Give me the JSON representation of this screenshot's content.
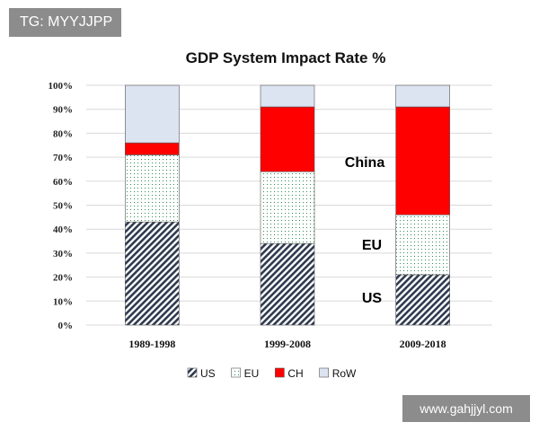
{
  "watermarks": {
    "top_left": "TG: MYYJJPP",
    "bottom_right": "www.gahjjyl.com"
  },
  "chart_data": {
    "type": "bar",
    "stacked": true,
    "title": "GDP System Impact Rate %",
    "categories": [
      "1989-1998",
      "1999-2008",
      "2009-2018"
    ],
    "series": [
      {
        "name": "US",
        "values": [
          43,
          34,
          21
        ],
        "fill": "hatch",
        "color": "#2f3a4f"
      },
      {
        "name": "EU",
        "values": [
          28,
          30,
          25
        ],
        "fill": "dots",
        "color": "#2e8b57"
      },
      {
        "name": "CH",
        "values": [
          5,
          27,
          45
        ],
        "fill": "solid",
        "color": "#ff0000"
      },
      {
        "name": "RoW",
        "values": [
          24,
          9,
          9
        ],
        "fill": "solid",
        "color": "#dce3f1"
      }
    ],
    "ylim": [
      0,
      100
    ],
    "yticks": [
      "0%",
      "10%",
      "20%",
      "30%",
      "40%",
      "50%",
      "60%",
      "70%",
      "80%",
      "90%",
      "100%"
    ],
    "grid": true,
    "legend": "bottom",
    "annotations": [
      "China",
      "EU",
      "US"
    ]
  }
}
